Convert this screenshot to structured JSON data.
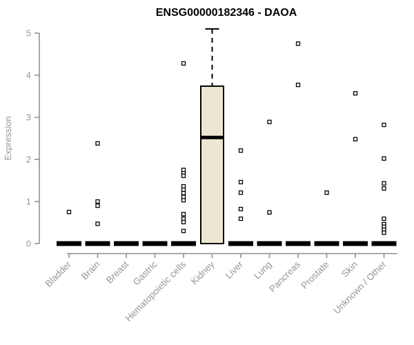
{
  "chart_data": {
    "type": "boxplot",
    "title": "ENSG00000182346 - DAOA",
    "ylabel": "Expression",
    "xlabel": "",
    "ylim": [
      0,
      5
    ],
    "yticks": [
      0,
      1,
      2,
      3,
      4,
      5
    ],
    "grid": false,
    "legend": "none",
    "categories": [
      "Bladder",
      "Brain",
      "Breast",
      "Gastric",
      "Hematopoietic cells",
      "Kidney",
      "Liver",
      "Lung",
      "Pancreas",
      "Prostate",
      "Skin",
      "Unknown / Other"
    ],
    "boxes": [
      {
        "category": "Bladder",
        "q1": 0,
        "median": 0,
        "q3": 0,
        "whisker_low": 0,
        "whisker_high": 0,
        "outliers": [
          0.75
        ]
      },
      {
        "category": "Brain",
        "q1": 0,
        "median": 0,
        "q3": 0,
        "whisker_low": 0,
        "whisker_high": 0,
        "outliers": [
          2.38,
          1.0,
          0.9,
          0.47
        ]
      },
      {
        "category": "Breast",
        "q1": 0,
        "median": 0,
        "q3": 0,
        "whisker_low": 0,
        "whisker_high": 0,
        "outliers": []
      },
      {
        "category": "Gastric",
        "q1": 0,
        "median": 0,
        "q3": 0,
        "whisker_low": 0,
        "whisker_high": 0,
        "outliers": []
      },
      {
        "category": "Hematopoietic cells",
        "q1": 0,
        "median": 0,
        "q3": 0,
        "whisker_low": 0,
        "whisker_high": 0,
        "outliers": [
          4.28,
          1.75,
          1.67,
          1.61,
          1.36,
          1.28,
          1.2,
          1.11,
          1.03,
          0.7,
          0.59,
          0.51,
          0.3
        ]
      },
      {
        "category": "Kidney",
        "q1": 0,
        "median": 2.52,
        "q3": 3.74,
        "whisker_low": 0,
        "whisker_high": 5.1,
        "outliers": []
      },
      {
        "category": "Liver",
        "q1": 0,
        "median": 0,
        "q3": 0,
        "whisker_low": 0,
        "whisker_high": 0,
        "outliers": [
          2.21,
          1.46,
          1.21,
          0.82,
          0.59
        ]
      },
      {
        "category": "Lung",
        "q1": 0,
        "median": 0,
        "q3": 0,
        "whisker_low": 0,
        "whisker_high": 0,
        "outliers": [
          2.89,
          0.74
        ]
      },
      {
        "category": "Pancreas",
        "q1": 0,
        "median": 0,
        "q3": 0,
        "whisker_low": 0,
        "whisker_high": 0,
        "outliers": [
          4.75,
          3.77
        ]
      },
      {
        "category": "Prostate",
        "q1": 0,
        "median": 0,
        "q3": 0,
        "whisker_low": 0,
        "whisker_high": 0,
        "outliers": [
          1.21
        ]
      },
      {
        "category": "Skin",
        "q1": 0,
        "median": 0,
        "q3": 0,
        "whisker_low": 0,
        "whisker_high": 0,
        "outliers": [
          3.57,
          2.48
        ]
      },
      {
        "category": "Unknown / Other",
        "q1": 0,
        "median": 0,
        "q3": 0,
        "whisker_low": 0,
        "whisker_high": 0,
        "outliers": [
          2.82,
          2.02,
          1.43,
          1.31,
          0.59,
          0.46,
          0.4,
          0.33,
          0.26
        ]
      }
    ],
    "colors": {
      "box_fill": "#ECE7CE",
      "box_border": "#000000",
      "median": "#000000",
      "collapsed_box": "#000000",
      "outlier_stroke": "#000000",
      "outlier_fill": "#ffffff",
      "axis": "#8a8a8a",
      "tick_label": "#979797",
      "title": "#000000",
      "background": "#ffffff"
    }
  }
}
